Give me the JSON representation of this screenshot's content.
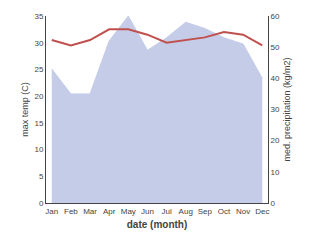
{
  "chart_data": {
    "type": "line",
    "categories": [
      "Jan",
      "Feb",
      "Mar",
      "Apr",
      "May",
      "Jun",
      "Jul",
      "Aug",
      "Sep",
      "Oct",
      "Nov",
      "Dec"
    ],
    "xlabel": "date (month)",
    "ylabel": "max temp (C)",
    "y2label": "med. precipitation (kg/m2)",
    "series": [
      {
        "type": "area",
        "axis": "y2",
        "color": "#c5cce8",
        "values": [
          43,
          35,
          35,
          52,
          60,
          49,
          53,
          58,
          56,
          53,
          51,
          40
        ]
      },
      {
        "type": "line",
        "color": "#c0504d",
        "values": [
          30.5,
          29.5,
          30.5,
          32.5,
          32.5,
          31.5,
          30.0,
          30.5,
          31.0,
          32.0,
          31.5,
          29.5
        ]
      }
    ],
    "ylim": [
      0,
      35
    ],
    "yticks": [
      0,
      5,
      10,
      15,
      20,
      25,
      30,
      35
    ],
    "y2lim": [
      0,
      60
    ],
    "y2ticks": [
      0,
      10,
      20,
      30,
      40,
      50,
      60
    ],
    "grid": false
  }
}
